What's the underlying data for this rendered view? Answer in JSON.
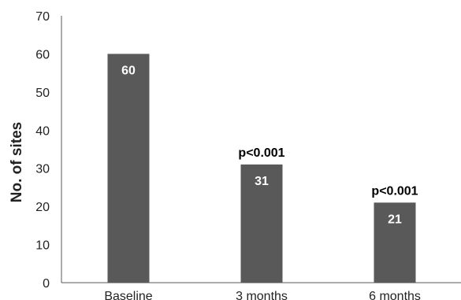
{
  "chart_data": {
    "type": "bar",
    "title": "",
    "xlabel": "",
    "ylabel": "No. of sites",
    "categories": [
      "Baseline",
      "3 months",
      "6 months"
    ],
    "values": [
      60,
      31,
      21
    ],
    "data_labels": [
      "60",
      "31",
      "21"
    ],
    "annotations": [
      "",
      "p<0.001",
      "p<0.001"
    ],
    "ylim": [
      0,
      70
    ],
    "yticks": [
      0,
      10,
      20,
      30,
      40,
      50,
      60,
      70
    ],
    "grid": false,
    "legend": "none",
    "bar_color": "#595959"
  }
}
